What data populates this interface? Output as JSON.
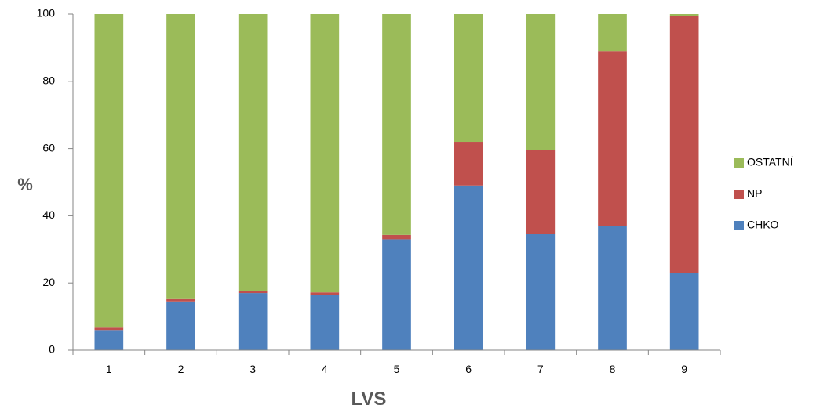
{
  "chart_data": {
    "type": "bar",
    "stacked": true,
    "categories": [
      "1",
      "2",
      "3",
      "4",
      "5",
      "6",
      "7",
      "8",
      "9"
    ],
    "series": [
      {
        "name": "CHKO",
        "color": "#4F81BD",
        "values": [
          6,
          14.5,
          17,
          16.5,
          33,
          49,
          34.5,
          37,
          23
        ]
      },
      {
        "name": "NP",
        "color": "#C0504D",
        "values": [
          0.7,
          0.7,
          0.5,
          0.7,
          1.3,
          13,
          25,
          52,
          76.5
        ]
      },
      {
        "name": "OSTATNÍ",
        "color": "#9BBB59",
        "values": [
          93.3,
          84.8,
          82.5,
          82.8,
          65.7,
          38,
          40.5,
          11,
          0.5
        ]
      }
    ],
    "xlabel": "LVS",
    "ylabel": "%",
    "ylim": [
      0,
      100
    ],
    "yticks": [
      "0",
      "20",
      "40",
      "60",
      "80",
      "100"
    ],
    "grid": false,
    "legend_position": "right"
  }
}
